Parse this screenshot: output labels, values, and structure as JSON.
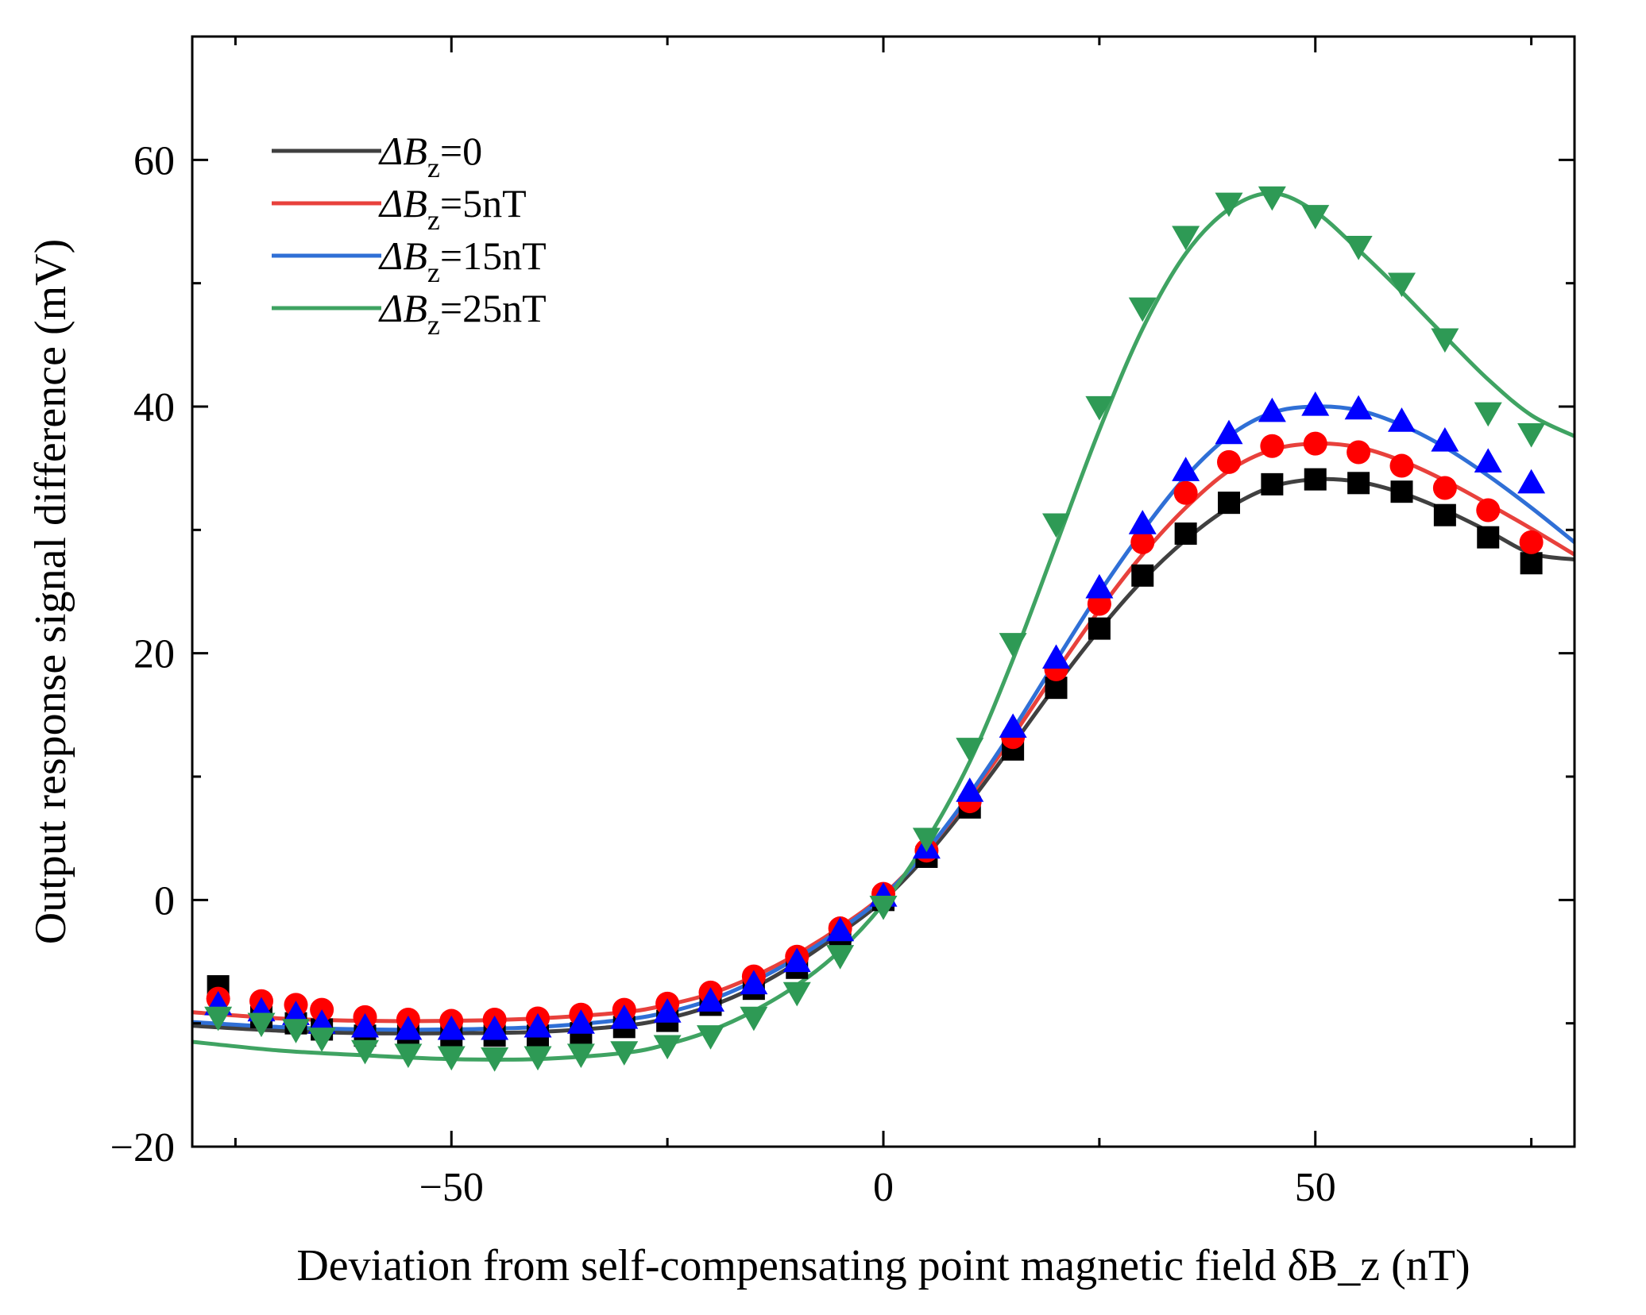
{
  "chart_data": {
    "type": "scatter",
    "xlabel": "Deviation from self-compensating point magnetic field δB_z (nT)",
    "ylabel": "Output response signal difference (mV)",
    "xlim": [
      -80,
      80
    ],
    "ylim": [
      -20,
      70
    ],
    "xticks": [
      -50,
      0,
      50
    ],
    "yticks": [
      -20,
      0,
      20,
      40,
      60
    ],
    "x_tick_labels": [
      "−50",
      "0",
      "50"
    ],
    "y_tick_labels": [
      "−20",
      "0",
      "20",
      "40",
      "60"
    ],
    "legend_position": "top-left",
    "x": [
      -77,
      -72,
      -68,
      -65,
      -60,
      -55,
      -50,
      -45,
      -40,
      -35,
      -30,
      -25,
      -20,
      -15,
      -10,
      -5,
      0,
      5,
      10,
      15,
      20,
      25,
      30,
      35,
      40,
      45,
      50,
      55,
      60,
      65,
      70,
      75
    ],
    "series": [
      {
        "name": "ΔB_z=0",
        "legend_main": "ΔB",
        "legend_sub": "z",
        "legend_tail": "=0",
        "color": "#404040",
        "marker_color": "#000000",
        "marker": "square",
        "values": [
          -7.0,
          -9.5,
          -10.0,
          -10.5,
          -11.0,
          -11.0,
          -11.0,
          -11.0,
          -11.0,
          -10.8,
          -10.3,
          -9.8,
          -8.5,
          -7.2,
          -5.5,
          -2.8,
          0.0,
          3.5,
          7.5,
          12.2,
          17.2,
          22.0,
          26.3,
          29.7,
          32.2,
          33.7,
          34.1,
          33.8,
          33.1,
          31.2,
          29.4,
          27.3
        ],
        "curve_x": [
          -80,
          -70,
          -60,
          -50,
          -40,
          -30,
          -25,
          -20,
          -15,
          -10,
          -5,
          0,
          5,
          10,
          15,
          20,
          25,
          30,
          35,
          40,
          45,
          50,
          55,
          60,
          65,
          70,
          75,
          80
        ],
        "curve_y": [
          -10.2,
          -10.6,
          -10.8,
          -10.8,
          -10.7,
          -10.2,
          -9.6,
          -8.6,
          -7.1,
          -5.1,
          -2.7,
          0.0,
          3.6,
          7.9,
          12.6,
          17.4,
          21.9,
          25.9,
          29.2,
          31.8,
          33.5,
          34.1,
          33.9,
          33.0,
          31.6,
          29.9,
          28.1,
          27.6
        ]
      },
      {
        "name": "ΔB_z=5nT",
        "legend_main": "ΔB",
        "legend_sub": "z",
        "legend_tail": "=5nT",
        "color": "#e8413c",
        "marker_color": "#ff0000",
        "marker": "circle",
        "values": [
          -8.0,
          -8.2,
          -8.5,
          -8.9,
          -9.5,
          -9.7,
          -9.8,
          -9.7,
          -9.6,
          -9.3,
          -8.9,
          -8.4,
          -7.5,
          -6.2,
          -4.6,
          -2.3,
          0.5,
          4.0,
          8.0,
          13.2,
          18.7,
          24.0,
          29.0,
          33.0,
          35.5,
          36.8,
          37.0,
          36.3,
          35.2,
          33.4,
          31.6,
          29.0
        ],
        "curve_x": [
          -80,
          -70,
          -60,
          -50,
          -40,
          -30,
          -25,
          -20,
          -15,
          -10,
          -5,
          0,
          5,
          10,
          15,
          20,
          25,
          30,
          35,
          40,
          45,
          50,
          55,
          60,
          65,
          70,
          75,
          80
        ],
        "curve_y": [
          -9.1,
          -9.6,
          -9.8,
          -9.8,
          -9.6,
          -9.1,
          -8.5,
          -7.6,
          -6.2,
          -4.4,
          -2.2,
          0.4,
          4.0,
          8.4,
          13.3,
          18.5,
          23.5,
          28.0,
          31.8,
          34.8,
          36.5,
          37.0,
          36.7,
          35.6,
          34.0,
          32.1,
          30.1,
          28.0
        ]
      },
      {
        "name": "ΔB_z=15nT",
        "legend_main": "ΔB",
        "legend_sub": "z",
        "legend_tail": "=15nT",
        "color": "#2f6fd6",
        "marker_color": "#0000ff",
        "marker": "triangle-up",
        "values": [
          -8.5,
          -9.0,
          -9.3,
          -10.0,
          -10.3,
          -10.5,
          -10.5,
          -10.5,
          -10.3,
          -10.0,
          -9.6,
          -9.1,
          -8.2,
          -6.8,
          -5.0,
          -2.5,
          0.3,
          4.2,
          8.8,
          14.0,
          19.6,
          25.3,
          30.5,
          34.8,
          37.8,
          39.6,
          40.1,
          39.8,
          38.8,
          37.2,
          35.5,
          33.8
        ],
        "curve_x": [
          -80,
          -70,
          -60,
          -50,
          -40,
          -30,
          -25,
          -20,
          -15,
          -10,
          -5,
          0,
          5,
          10,
          15,
          20,
          25,
          30,
          35,
          40,
          45,
          50,
          55,
          60,
          65,
          70,
          75,
          80
        ],
        "curve_y": [
          -9.9,
          -10.3,
          -10.5,
          -10.5,
          -10.3,
          -9.7,
          -9.1,
          -8.1,
          -6.6,
          -4.7,
          -2.4,
          0.3,
          4.0,
          8.6,
          13.8,
          19.4,
          24.9,
          29.9,
          34.3,
          37.6,
          39.5,
          40.0,
          39.7,
          38.5,
          36.7,
          34.4,
          31.8,
          29.0
        ]
      },
      {
        "name": "ΔB_z=25nT",
        "legend_main": "ΔB",
        "legend_sub": "z",
        "legend_tail": "=25nT",
        "color": "#3fa362",
        "marker_color": "#2e9a55",
        "marker": "triangle-down",
        "values": [
          -9.5,
          -10.0,
          -10.5,
          -11.2,
          -12.2,
          -12.5,
          -12.7,
          -12.8,
          -12.7,
          -12.5,
          -12.3,
          -11.8,
          -11.0,
          -9.5,
          -7.5,
          -4.5,
          -0.5,
          5.0,
          12.3,
          20.8,
          30.5,
          40.0,
          48.0,
          53.8,
          56.5,
          57.0,
          55.5,
          53.0,
          50.0,
          45.5,
          39.5,
          37.8
        ],
        "curve_x": [
          -80,
          -70,
          -60,
          -50,
          -40,
          -30,
          -25,
          -20,
          -15,
          -10,
          -5,
          0,
          5,
          10,
          15,
          20,
          25,
          30,
          35,
          40,
          45,
          50,
          55,
          60,
          65,
          70,
          75,
          80
        ],
        "curve_y": [
          -11.5,
          -12.2,
          -12.6,
          -12.9,
          -12.9,
          -12.4,
          -11.7,
          -10.6,
          -9.0,
          -6.9,
          -4.1,
          -0.3,
          4.8,
          11.2,
          19.5,
          28.8,
          38.1,
          46.3,
          52.4,
          56.0,
          57.3,
          55.8,
          52.7,
          49.3,
          45.7,
          42.2,
          39.3,
          37.6
        ]
      }
    ]
  }
}
